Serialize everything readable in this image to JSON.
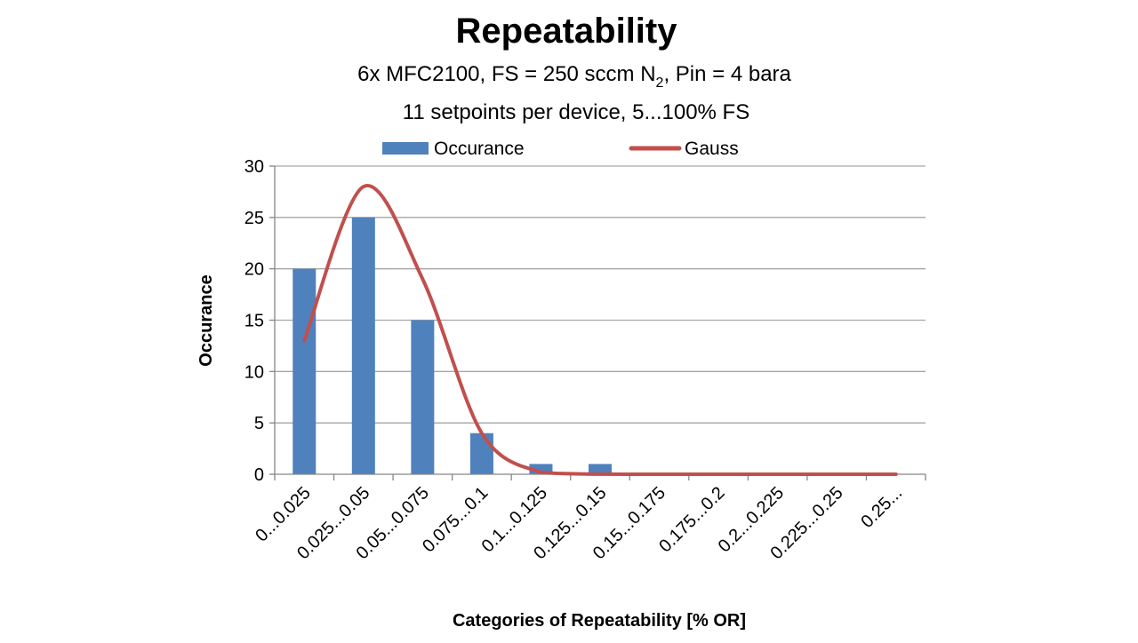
{
  "chart_data": {
    "type": "bar",
    "title": "Repeatability",
    "subtitle_line1_main": "6x MFC2100, FS = 250 sccm N",
    "subtitle_line1_sub": "2",
    "subtitle_line1_tail": ", Pin = 4 bara",
    "subtitle_line2": "11 setpoints per device, 5...100% FS",
    "xlabel": "Categories of Repeatability [% OR]",
    "ylabel": "Occurance",
    "ylim": [
      0,
      30
    ],
    "yticks": [
      0,
      5,
      10,
      15,
      20,
      25,
      30
    ],
    "grid": true,
    "legend_position": "top",
    "categories": [
      "0...0.025",
      "0.025...0.05",
      "0.05...0.075",
      "0.075...0.1",
      "0.1...0.125",
      "0.125...0.15",
      "0.15...0.175",
      "0.175...0.2",
      "0.2...0.225",
      "0.225...0.25",
      "0.25..."
    ],
    "series": [
      {
        "name": "Occurance",
        "type": "bar",
        "color": "#4f81bd",
        "values": [
          20,
          25,
          15,
          4,
          1,
          1,
          0,
          0,
          0,
          0,
          0
        ]
      },
      {
        "name": "Gauss",
        "type": "line",
        "color": "#c0504d",
        "values": [
          13,
          28,
          19,
          4,
          0.2,
          0.01,
          0,
          0,
          0,
          0,
          0
        ]
      }
    ]
  }
}
